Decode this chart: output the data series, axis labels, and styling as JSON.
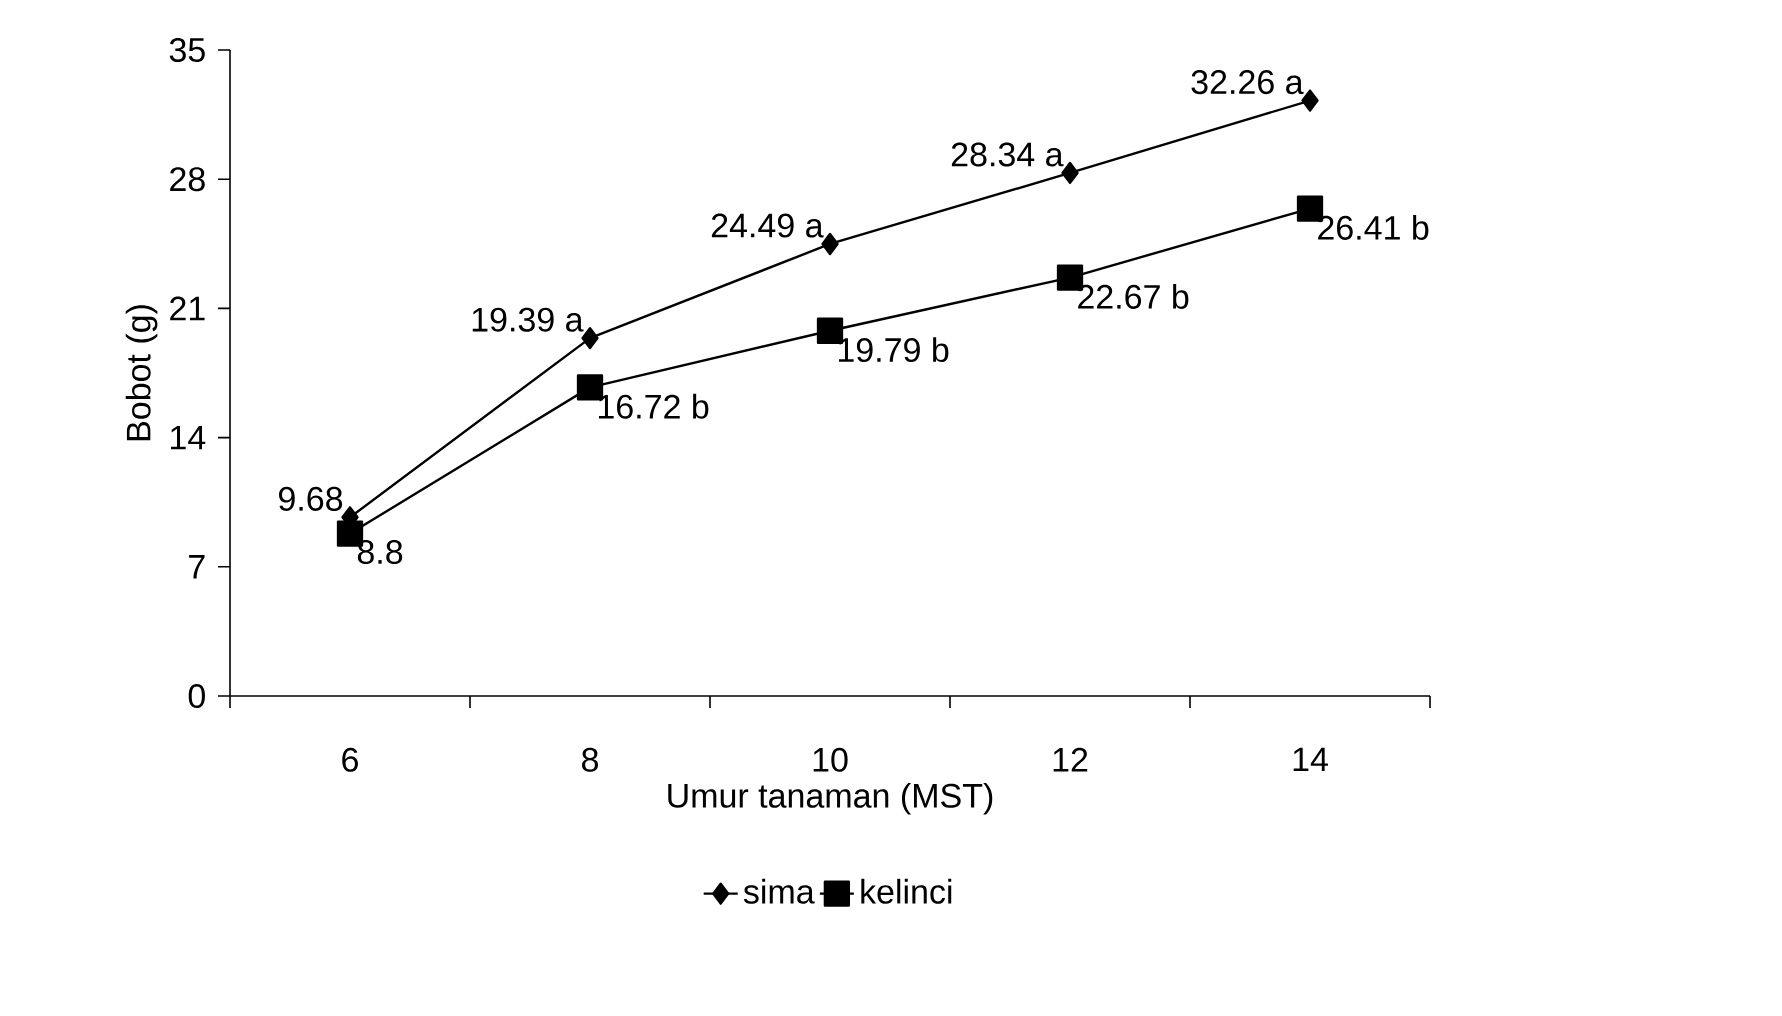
{
  "chart_data": {
    "type": "line",
    "xlabel": "Umur tanaman (MST)",
    "ylabel": "Bobot (g)",
    "categories": [
      "6",
      "8",
      "10",
      "12",
      "14"
    ],
    "series": [
      {
        "name": "sima",
        "color": "#000000",
        "marker": "diamond",
        "values": [
          9.68,
          19.39,
          24.49,
          28.34,
          32.26
        ],
        "value_labels": [
          "9.68",
          "19.39 a",
          "24.49 a",
          "28.34 a",
          "32.26 a"
        ]
      },
      {
        "name": "kelinci",
        "color": "#000000",
        "marker": "square",
        "values": [
          8.8,
          16.72,
          19.79,
          22.67,
          26.41
        ],
        "value_labels": [
          "8.8",
          "16.72 b",
          "19.79 b",
          "22.67 b",
          "26.41 b"
        ]
      }
    ],
    "ylim": [
      0,
      35
    ],
    "yticks": [
      0,
      7,
      14,
      21,
      28,
      35
    ],
    "legend": "bottom",
    "grid": false
  }
}
